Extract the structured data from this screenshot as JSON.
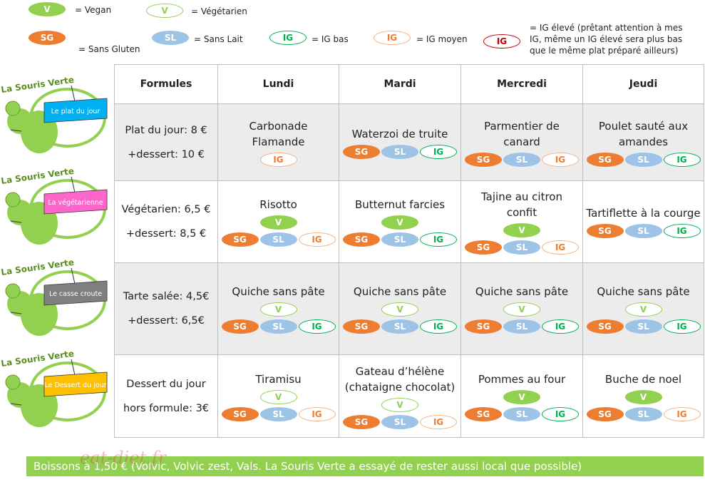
{
  "legend": [
    {
      "label": "V",
      "text": "= Vegan",
      "color": "#92d050",
      "filled": true
    },
    {
      "label": "V",
      "text": "= Végétarien",
      "color": "#92d050",
      "filled": false
    },
    {
      "label": "SG",
      "text": "= Sans Gluten",
      "color": "#ed7d31",
      "filled": true
    },
    {
      "label": "SL",
      "text": "= Sans Lait",
      "color": "#9dc3e6",
      "filled": true
    },
    {
      "label": "IG",
      "text": "= IG bas",
      "color": "#00b050",
      "filled": false
    },
    {
      "label": "IG",
      "text": "= IG moyen",
      "color": "#f4b183",
      "filled": false
    },
    {
      "label": "IG",
      "text": [
        "= IG élevé (prêtant attention à mes",
        "IG, même un IG élevé sera plus bas",
        "que le même plat préparé ailleurs)"
      ],
      "color": "#c00000",
      "filled": false
    }
  ],
  "logos": [
    {
      "title": "La Souris Verte",
      "banner": "Le plat du jour",
      "color": "#00b0f0"
    },
    {
      "title": "La Souris Verte",
      "banner": "La végétarienne",
      "color": "#ff66cc"
    },
    {
      "title": "La Souris Verte",
      "banner": "Le casse croute",
      "color": "#7f7f7f"
    },
    {
      "title": "La Souris Verte",
      "banner": "Le Dessert du jour",
      "color": "#ffc000"
    }
  ],
  "table": {
    "headers": [
      "Formules",
      "Lundi",
      "Mardi",
      "Mercredi",
      "Jeudi"
    ],
    "rows": [
      {
        "formule": [
          "Plat du jour: 8 €",
          "+dessert: 10 €"
        ],
        "cells": [
          {
            "name": [
              "Carbonade",
              "Flamande"
            ],
            "top": [],
            "badges": [
              {
                "label": "IG",
                "color": "#f4b183",
                "filled": false
              }
            ]
          },
          {
            "name": [
              "Waterzoi de truite"
            ],
            "top": [],
            "badges": [
              {
                "label": "SG",
                "color": "#ed7d31",
                "filled": true
              },
              {
                "label": "SL",
                "color": "#9dc3e6",
                "filled": true
              },
              {
                "label": "IG",
                "color": "#00b050",
                "filled": false
              }
            ]
          },
          {
            "name": [
              "Parmentier de",
              "canard"
            ],
            "top": [],
            "badges": [
              {
                "label": "SG",
                "color": "#ed7d31",
                "filled": true
              },
              {
                "label": "SL",
                "color": "#9dc3e6",
                "filled": true
              },
              {
                "label": "IG",
                "color": "#f4b183",
                "filled": false
              }
            ]
          },
          {
            "name": [
              "Poulet sauté aux",
              "amandes"
            ],
            "top": [],
            "badges": [
              {
                "label": "SG",
                "color": "#ed7d31",
                "filled": true
              },
              {
                "label": "SL",
                "color": "#9dc3e6",
                "filled": true
              },
              {
                "label": "IG",
                "color": "#00b050",
                "filled": false
              }
            ]
          }
        ]
      },
      {
        "formule": [
          "Végétarien: 6,5 €",
          "+dessert: 8,5 €"
        ],
        "cells": [
          {
            "name": [
              "Risotto"
            ],
            "top": [
              {
                "label": "V",
                "color": "#92d050",
                "filled": true
              }
            ],
            "badges": [
              {
                "label": "SG",
                "color": "#ed7d31",
                "filled": true
              },
              {
                "label": "SL",
                "color": "#9dc3e6",
                "filled": true
              },
              {
                "label": "IG",
                "color": "#f4b183",
                "filled": false
              }
            ]
          },
          {
            "name": [
              "Butternut farcies"
            ],
            "top": [
              {
                "label": "V",
                "color": "#92d050",
                "filled": true
              }
            ],
            "badges": [
              {
                "label": "SG",
                "color": "#ed7d31",
                "filled": true
              },
              {
                "label": "SL",
                "color": "#9dc3e6",
                "filled": true
              },
              {
                "label": "IG",
                "color": "#00b050",
                "filled": false
              }
            ]
          },
          {
            "name": [
              "Tajine au citron",
              "confit"
            ],
            "top": [
              {
                "label": "V",
                "color": "#92d050",
                "filled": true
              }
            ],
            "badges": [
              {
                "label": "SG",
                "color": "#ed7d31",
                "filled": true
              },
              {
                "label": "SL",
                "color": "#9dc3e6",
                "filled": true
              },
              {
                "label": "IG",
                "color": "#f4b183",
                "filled": false
              }
            ]
          },
          {
            "name": [
              "Tartiflette à la courge"
            ],
            "top": [],
            "badges": [
              {
                "label": "SG",
                "color": "#ed7d31",
                "filled": true
              },
              {
                "label": "SL",
                "color": "#9dc3e6",
                "filled": true
              },
              {
                "label": "IG",
                "color": "#00b050",
                "filled": false
              }
            ]
          }
        ]
      },
      {
        "formule": [
          "Tarte salée: 4,5€",
          "+dessert: 6,5€"
        ],
        "cells": [
          {
            "name": [
              "Quiche sans pâte"
            ],
            "top": [
              {
                "label": "V",
                "color": "#92d050",
                "filled": false
              }
            ],
            "badges": [
              {
                "label": "SG",
                "color": "#ed7d31",
                "filled": true
              },
              {
                "label": "SL",
                "color": "#9dc3e6",
                "filled": true
              },
              {
                "label": "IG",
                "color": "#00b050",
                "filled": false
              }
            ]
          },
          {
            "name": [
              "Quiche sans pâte"
            ],
            "top": [
              {
                "label": "V",
                "color": "#92d050",
                "filled": false
              }
            ],
            "badges": [
              {
                "label": "SG",
                "color": "#ed7d31",
                "filled": true
              },
              {
                "label": "SL",
                "color": "#9dc3e6",
                "filled": true
              },
              {
                "label": "IG",
                "color": "#00b050",
                "filled": false
              }
            ]
          },
          {
            "name": [
              "Quiche sans pâte"
            ],
            "top": [
              {
                "label": "V",
                "color": "#92d050",
                "filled": false
              }
            ],
            "badges": [
              {
                "label": "SG",
                "color": "#ed7d31",
                "filled": true
              },
              {
                "label": "SL",
                "color": "#9dc3e6",
                "filled": true
              },
              {
                "label": "IG",
                "color": "#00b050",
                "filled": false
              }
            ]
          },
          {
            "name": [
              "Quiche sans pâte"
            ],
            "top": [
              {
                "label": "V",
                "color": "#92d050",
                "filled": false
              }
            ],
            "badges": [
              {
                "label": "SG",
                "color": "#ed7d31",
                "filled": true
              },
              {
                "label": "SL",
                "color": "#9dc3e6",
                "filled": true
              },
              {
                "label": "IG",
                "color": "#00b050",
                "filled": false
              }
            ]
          }
        ]
      },
      {
        "formule": [
          "Dessert du jour",
          "hors formule: 3€"
        ],
        "cells": [
          {
            "name": [
              "Tiramisu"
            ],
            "top": [
              {
                "label": "V",
                "color": "#92d050",
                "filled": false
              }
            ],
            "badges": [
              {
                "label": "SG",
                "color": "#ed7d31",
                "filled": true
              },
              {
                "label": "SL",
                "color": "#9dc3e6",
                "filled": true
              },
              {
                "label": "IG",
                "color": "#f4b183",
                "filled": false
              }
            ]
          },
          {
            "name": [
              "Gateau d’hélène",
              "(chataigne chocolat)"
            ],
            "top": [
              {
                "label": "V",
                "color": "#92d050",
                "filled": false
              }
            ],
            "badges": [
              {
                "label": "SG",
                "color": "#ed7d31",
                "filled": true
              },
              {
                "label": "SL",
                "color": "#9dc3e6",
                "filled": true
              },
              {
                "label": "IG",
                "color": "#f4b183",
                "filled": false
              }
            ]
          },
          {
            "name": [
              "Pommes au four"
            ],
            "top": [
              {
                "label": "V",
                "color": "#92d050",
                "filled": true
              }
            ],
            "badges": [
              {
                "label": "SG",
                "color": "#ed7d31",
                "filled": true
              },
              {
                "label": "SL",
                "color": "#9dc3e6",
                "filled": true
              },
              {
                "label": "IG",
                "color": "#00b050",
                "filled": false
              }
            ]
          },
          {
            "name": [
              "Buche de noel"
            ],
            "top": [
              {
                "label": "V",
                "color": "#92d050",
                "filled": true
              }
            ],
            "badges": [
              {
                "label": "SG",
                "color": "#ed7d31",
                "filled": true
              },
              {
                "label": "SL",
                "color": "#9dc3e6",
                "filled": true
              },
              {
                "label": "IG",
                "color": "#f4b183",
                "filled": false
              }
            ]
          }
        ]
      }
    ]
  },
  "footer": "Boissons à 1,50 € (Volvic, Volvic zest, Vals. La Souris Verte a essayé de rester aussi local que possible)",
  "watermark": "eat-diet.fr"
}
